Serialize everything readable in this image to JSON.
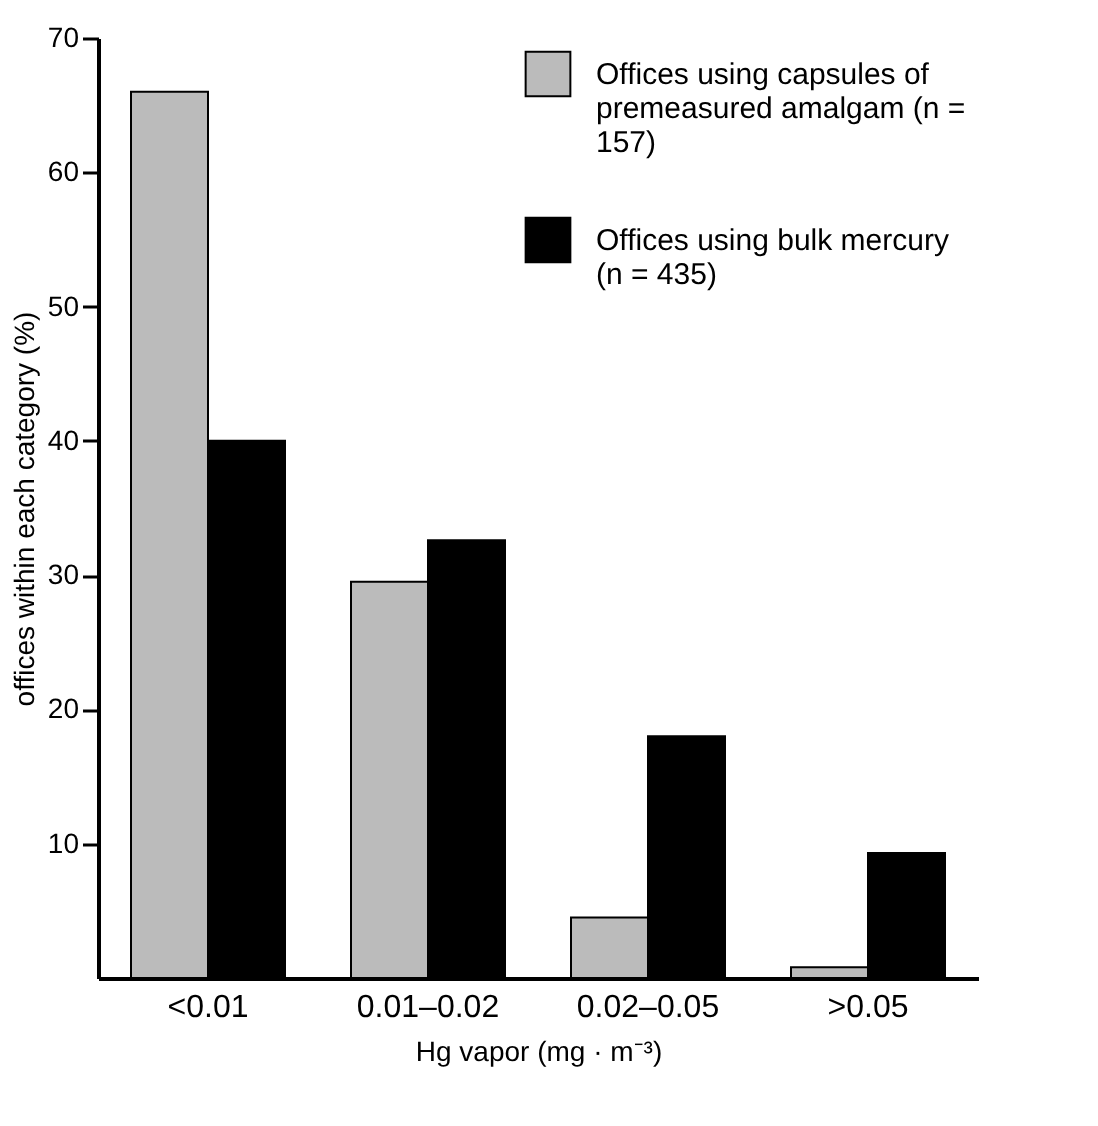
{
  "chart_data": {
    "type": "bar",
    "xlabel": "Hg vapor (mg · m⁻³)",
    "ylabel": "offices within each category (%)",
    "categories": [
      "<0.01",
      "0.01–0.02",
      "0.02–0.05",
      ">0.05"
    ],
    "series": [
      {
        "name": "Offices using capsules of premeasured amalgam (n = 157)",
        "color": "#bbbbbb",
        "values": [
          66,
          29.5,
          4.5,
          0.8
        ]
      },
      {
        "name": "Offices using bulk mercury (n = 435)",
        "color": "#000000",
        "values": [
          40,
          32.6,
          18,
          9.3
        ]
      }
    ],
    "ylim": [
      0,
      70
    ],
    "yticks": [
      10,
      20,
      30,
      40,
      50,
      60,
      70
    ],
    "grid": false,
    "legend": "top right"
  }
}
